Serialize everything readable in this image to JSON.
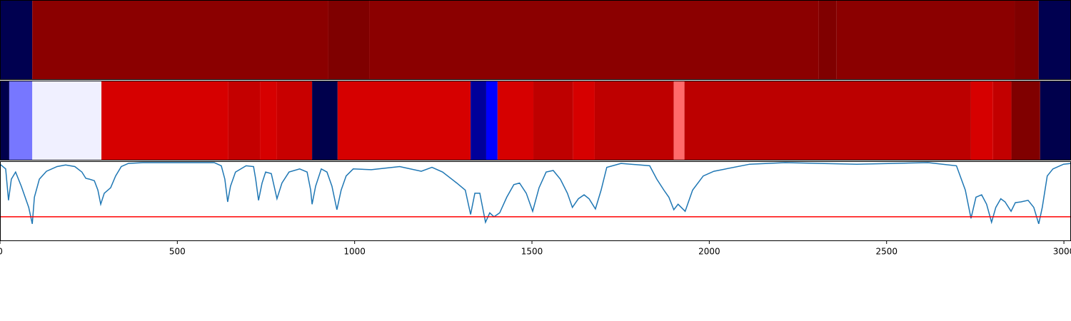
{
  "chart_data": [
    {
      "type": "strip",
      "xlim": [
        0,
        3020
      ],
      "bins": [
        0,
        91,
        926,
        1041,
        2309,
        2359,
        2861,
        2929,
        3020
      ],
      "colors": [
        "#000050",
        "#8b0000",
        "#7f0000",
        "#8b0000",
        "#800000",
        "#8b0000",
        "#800000",
        "#000050"
      ]
    },
    {
      "type": "strip",
      "xlim": [
        0,
        3020
      ],
      "bins": [
        0,
        26,
        91,
        286,
        644,
        733,
        781,
        880,
        952,
        1327,
        1371,
        1403,
        1504,
        1616,
        1677,
        1900,
        1930,
        2738,
        2800,
        2852,
        2933,
        3020
      ],
      "colors": [
        "#00004c",
        "#7777ff",
        "#f0f0ff",
        "#d60000",
        "#c40000",
        "#d60000",
        "#c80000",
        "#00004c",
        "#d60000",
        "#00009a",
        "#0000ff",
        "#d60000",
        "#be0000",
        "#d60000",
        "#be0000",
        "#ff6a6a",
        "#bc0000",
        "#d60000",
        "#c20000",
        "#800000",
        "#00004c"
      ]
    },
    {
      "type": "line",
      "xlim": [
        0,
        3020
      ],
      "ylim": [
        0,
        1
      ],
      "color": "#1f77b4",
      "xticks": [
        0,
        500,
        1000,
        1500,
        2000,
        2500,
        3000
      ],
      "hline": 0.31,
      "hline_color": "#ff0000",
      "x": [
        0,
        16,
        24,
        32,
        44,
        60,
        81,
        91,
        97,
        111,
        131,
        161,
        185,
        211,
        231,
        242,
        252,
        266,
        276,
        284,
        294,
        312,
        326,
        342,
        362,
        403,
        604,
        624,
        634,
        642,
        650,
        664,
        694,
        715,
        721,
        729,
        739,
        749,
        765,
        773,
        781,
        795,
        815,
        845,
        866,
        876,
        880,
        890,
        906,
        922,
        936,
        950,
        962,
        976,
        996,
        1047,
        1127,
        1188,
        1218,
        1248,
        1288,
        1312,
        1327,
        1339,
        1353,
        1369,
        1381,
        1393,
        1409,
        1429,
        1449,
        1465,
        1484,
        1502,
        1520,
        1540,
        1560,
        1580,
        1600,
        1614,
        1631,
        1647,
        1661,
        1679,
        1695,
        1711,
        1751,
        1832,
        1852,
        1872,
        1886,
        1900,
        1912,
        1932,
        1953,
        1983,
        2013,
        2114,
        2214,
        2416,
        2516,
        2617,
        2697,
        2722,
        2738,
        2752,
        2768,
        2782,
        2796,
        2808,
        2822,
        2834,
        2851,
        2863,
        2879,
        2899,
        2915,
        2929,
        2939,
        2953,
        2969,
        2999,
        3020
      ],
      "values": [
        0.98,
        0.92,
        0.52,
        0.79,
        0.88,
        0.7,
        0.43,
        0.22,
        0.56,
        0.79,
        0.89,
        0.95,
        0.97,
        0.95,
        0.88,
        0.8,
        0.79,
        0.77,
        0.65,
        0.47,
        0.61,
        0.68,
        0.83,
        0.95,
        0.99,
        1.0,
        1.0,
        0.96,
        0.79,
        0.5,
        0.7,
        0.88,
        0.96,
        0.95,
        0.79,
        0.52,
        0.74,
        0.88,
        0.86,
        0.7,
        0.54,
        0.74,
        0.88,
        0.92,
        0.88,
        0.65,
        0.47,
        0.7,
        0.92,
        0.88,
        0.7,
        0.4,
        0.65,
        0.83,
        0.92,
        0.91,
        0.95,
        0.89,
        0.94,
        0.88,
        0.74,
        0.65,
        0.34,
        0.61,
        0.61,
        0.24,
        0.36,
        0.31,
        0.36,
        0.56,
        0.72,
        0.74,
        0.61,
        0.38,
        0.68,
        0.88,
        0.9,
        0.79,
        0.61,
        0.43,
        0.54,
        0.59,
        0.54,
        0.41,
        0.65,
        0.94,
        0.99,
        0.96,
        0.79,
        0.65,
        0.56,
        0.4,
        0.47,
        0.38,
        0.65,
        0.83,
        0.89,
        0.98,
        1.0,
        0.98,
        0.99,
        1.0,
        0.96,
        0.65,
        0.29,
        0.56,
        0.59,
        0.47,
        0.24,
        0.43,
        0.54,
        0.5,
        0.38,
        0.49,
        0.5,
        0.52,
        0.43,
        0.22,
        0.43,
        0.83,
        0.92,
        0.98,
        0.99
      ]
    }
  ]
}
